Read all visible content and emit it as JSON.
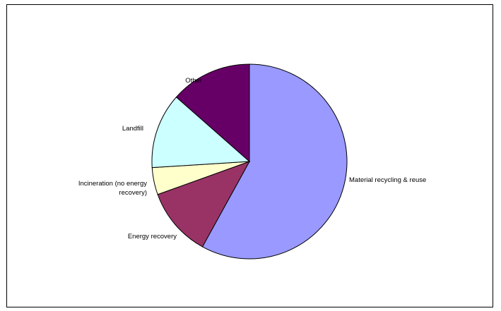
{
  "chart_data": {
    "type": "pie",
    "title": "",
    "slices": [
      {
        "label": "Material recycling & reuse",
        "value": 58.0,
        "color": "#9999ff"
      },
      {
        "label": "Energy recovery",
        "value": 11.5,
        "color": "#993366"
      },
      {
        "label": "Incineration (no energy recovery)",
        "label_lines": [
          "Incineration (no energy",
          "recovery)"
        ],
        "value": 4.5,
        "color": "#ffffcc"
      },
      {
        "label": "Landfill",
        "value": 12.5,
        "color": "#ccffff"
      },
      {
        "label": "Other",
        "value": 13.5,
        "color": "#660066"
      }
    ],
    "legend": "none",
    "slice_outline_color": "#000000"
  }
}
